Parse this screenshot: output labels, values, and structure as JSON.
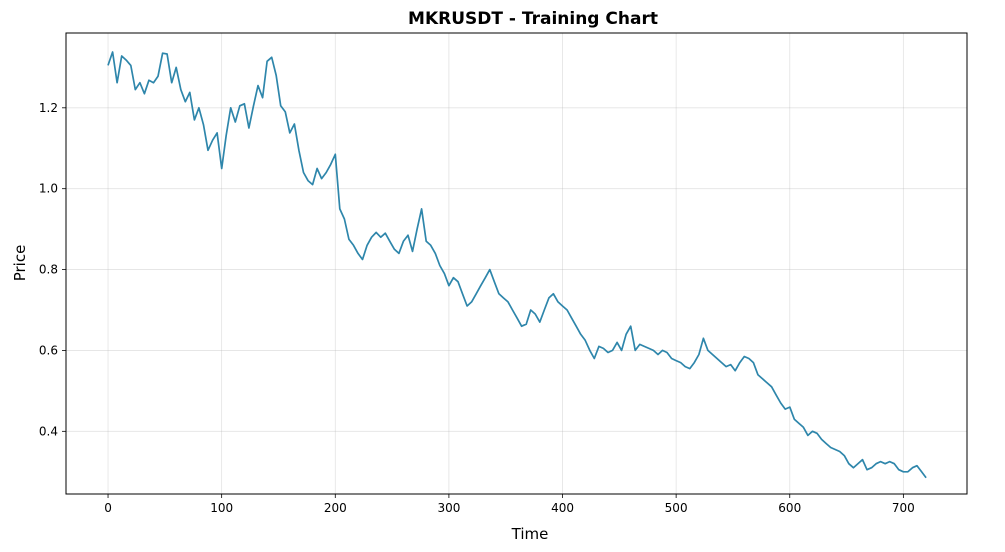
{
  "chart_data": {
    "type": "line",
    "title": "MKRUSDT - Training Chart",
    "xlabel": "Time",
    "ylabel": "Price",
    "xlim": [
      -37,
      756
    ],
    "ylim": [
      0.245,
      1.385
    ],
    "xticks": [
      0,
      100,
      200,
      300,
      400,
      500,
      600,
      700
    ],
    "yticks": [
      0.4,
      0.6,
      0.8,
      1.0,
      1.2
    ],
    "ytick_labels": [
      "0.4",
      "0.6",
      "0.8",
      "1.0",
      "1.2"
    ],
    "grid": true,
    "line_color": "#2e86ab",
    "series": [
      {
        "x": [
          0,
          4,
          8,
          12,
          16,
          20,
          24,
          28,
          32,
          36,
          40,
          44,
          48,
          52,
          56,
          60,
          64,
          68,
          72,
          76,
          80,
          84,
          88,
          92,
          96,
          100,
          104,
          108,
          112,
          116,
          120,
          124,
          128,
          132,
          136,
          140,
          144,
          148,
          152,
          156,
          160,
          164,
          168,
          172,
          176,
          180,
          184,
          188,
          192,
          196,
          200,
          204,
          208,
          212,
          216,
          220,
          224,
          228,
          232,
          236,
          240,
          244,
          248,
          252,
          256,
          260,
          264,
          268,
          272,
          276,
          280,
          284,
          288,
          292,
          296,
          300,
          304,
          308,
          312,
          316,
          320,
          324,
          328,
          332,
          336,
          340,
          344,
          348,
          352,
          356,
          360,
          364,
          368,
          372,
          376,
          380,
          384,
          388,
          392,
          396,
          400,
          404,
          408,
          412,
          416,
          420,
          424,
          428,
          432,
          436,
          440,
          444,
          448,
          452,
          456,
          460,
          464,
          468,
          472,
          476,
          480,
          484,
          488,
          492,
          496,
          500,
          504,
          508,
          512,
          516,
          520,
          524,
          528,
          532,
          536,
          540,
          544,
          548,
          552,
          556,
          560,
          564,
          568,
          572,
          576,
          580,
          584,
          588,
          592,
          596,
          600,
          604,
          608,
          612,
          616,
          620,
          624,
          628,
          632,
          636,
          640,
          644,
          648,
          652,
          656,
          660,
          664,
          668,
          672,
          676,
          680,
          684,
          688,
          692,
          696,
          700,
          704,
          708,
          712,
          716,
          720
        ],
        "values": [
          1.305,
          1.338,
          1.262,
          1.328,
          1.318,
          1.305,
          1.245,
          1.262,
          1.235,
          1.268,
          1.262,
          1.278,
          1.335,
          1.333,
          1.262,
          1.3,
          1.245,
          1.215,
          1.238,
          1.17,
          1.2,
          1.158,
          1.095,
          1.12,
          1.138,
          1.05,
          1.132,
          1.2,
          1.165,
          1.205,
          1.21,
          1.15,
          1.205,
          1.255,
          1.225,
          1.315,
          1.325,
          1.28,
          1.205,
          1.19,
          1.138,
          1.16,
          1.095,
          1.04,
          1.02,
          1.01,
          1.05,
          1.025,
          1.04,
          1.06,
          1.085,
          0.95,
          0.925,
          0.875,
          0.86,
          0.84,
          0.825,
          0.86,
          0.88,
          0.892,
          0.88,
          0.89,
          0.87,
          0.85,
          0.84,
          0.87,
          0.885,
          0.845,
          0.9,
          0.95,
          0.87,
          0.86,
          0.84,
          0.81,
          0.79,
          0.76,
          0.78,
          0.77,
          0.74,
          0.71,
          0.72,
          0.74,
          0.76,
          0.78,
          0.8,
          0.77,
          0.74,
          0.73,
          0.72,
          0.7,
          0.68,
          0.66,
          0.665,
          0.7,
          0.69,
          0.67,
          0.7,
          0.73,
          0.74,
          0.72,
          0.71,
          0.7,
          0.68,
          0.66,
          0.64,
          0.625,
          0.6,
          0.58,
          0.61,
          0.605,
          0.595,
          0.6,
          0.62,
          0.6,
          0.64,
          0.66,
          0.6,
          0.615,
          0.61,
          0.605,
          0.6,
          0.59,
          0.6,
          0.595,
          0.58,
          0.575,
          0.57,
          0.56,
          0.555,
          0.57,
          0.59,
          0.63,
          0.6,
          0.59,
          0.58,
          0.57,
          0.56,
          0.565,
          0.55,
          0.57,
          0.585,
          0.58,
          0.57,
          0.54,
          0.53,
          0.52,
          0.51,
          0.49,
          0.47,
          0.455,
          0.46,
          0.43,
          0.42,
          0.41,
          0.39,
          0.4,
          0.395,
          0.38,
          0.37,
          0.36,
          0.355,
          0.35,
          0.34,
          0.32,
          0.31,
          0.32,
          0.33,
          0.305,
          0.31,
          0.32,
          0.325,
          0.32,
          0.325,
          0.32,
          0.305,
          0.3,
          0.3,
          0.31,
          0.315,
          0.3,
          0.285
        ]
      }
    ]
  }
}
